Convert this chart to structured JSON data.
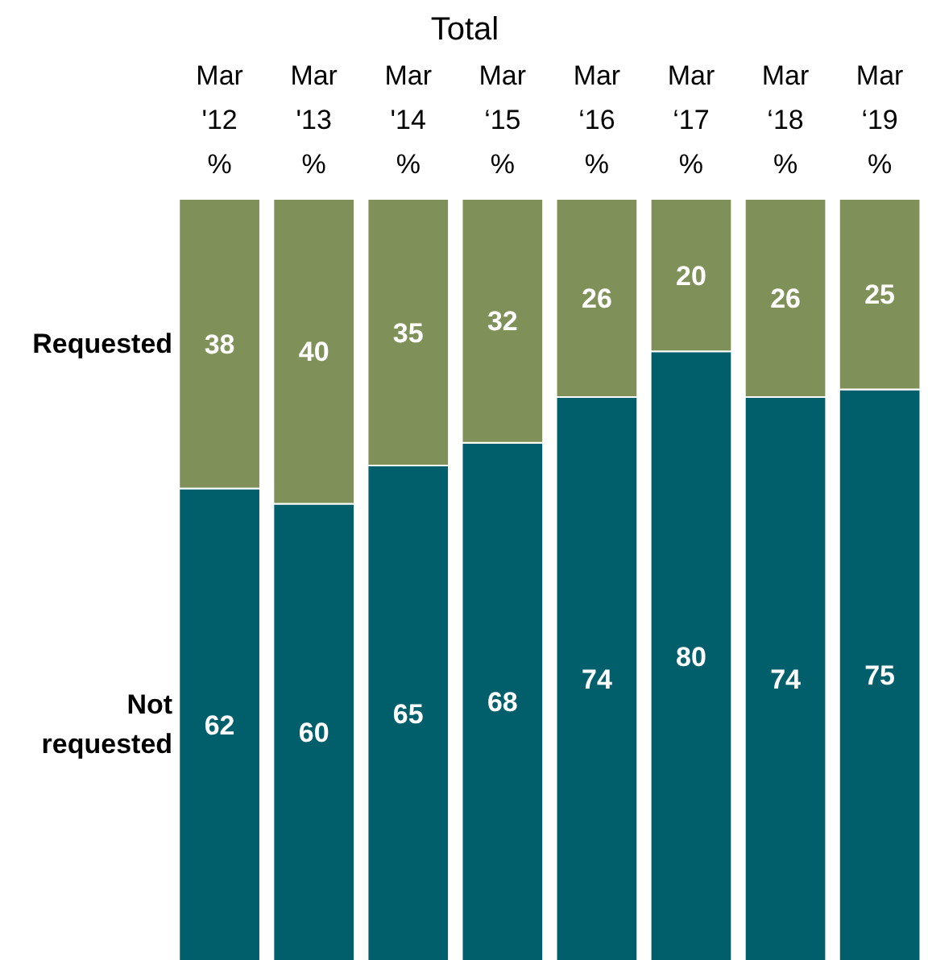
{
  "chart_data": {
    "type": "bar",
    "title": "Total",
    "categories": [
      "Mar\n'12\n%",
      "Mar\n'13\n%",
      "Mar\n'14\n%",
      "Mar\n‘15\n%",
      "Mar\n‘16\n%",
      "Mar\n‘17\n%",
      "Mar\n‘18\n%",
      "Mar\n‘19\n%"
    ],
    "stacked": true,
    "data_labels": true,
    "legend": false,
    "grid": false,
    "series": [
      {
        "name": "Not requested",
        "color": "#005f6b",
        "values": [
          62,
          60,
          65,
          68,
          74,
          80,
          74,
          75
        ]
      },
      {
        "name": "Requested",
        "color": "#7f9159",
        "values": [
          38,
          40,
          35,
          32,
          26,
          20,
          26,
          25
        ]
      }
    ]
  }
}
